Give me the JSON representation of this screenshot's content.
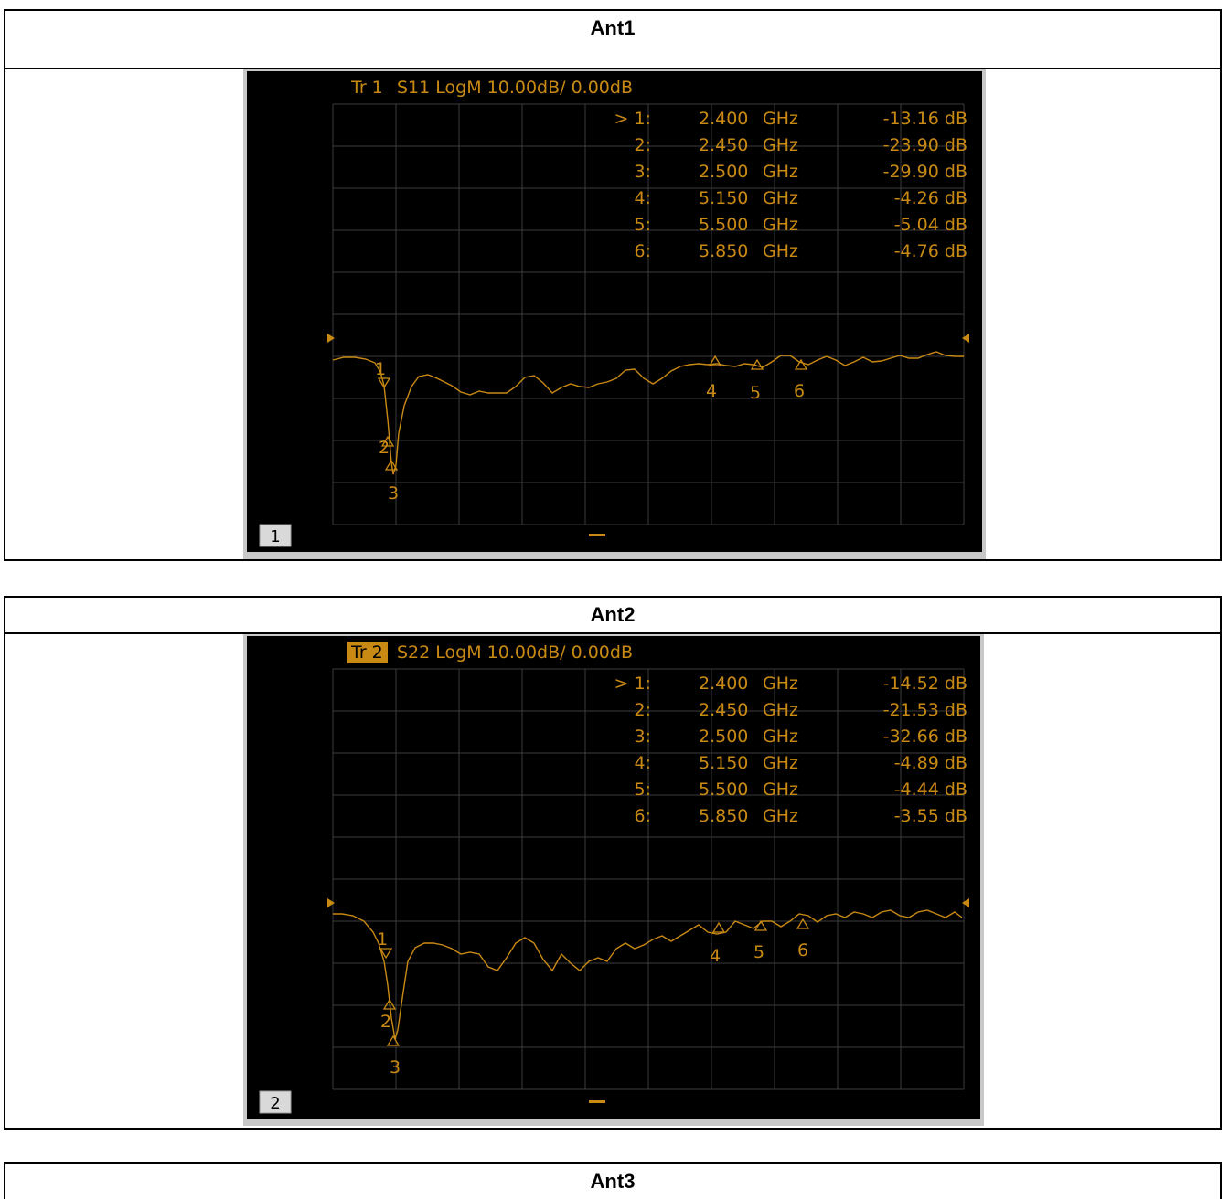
{
  "panels": [
    {
      "title": "Ant1",
      "trace_tag": "Tr 1",
      "trace_tag_highlight": false,
      "trace_info": "S11 LogM 10.00dB/  0.00dB",
      "channel": "1",
      "markers": [
        {
          "label": "> 1:",
          "freq": "2.400",
          "unit": "GHz",
          "value": "-13.16 dB"
        },
        {
          "label": "2:",
          "freq": "2.450",
          "unit": "GHz",
          "value": "-23.90 dB"
        },
        {
          "label": "3:",
          "freq": "2.500",
          "unit": "GHz",
          "value": "-29.90 dB"
        },
        {
          "label": "4:",
          "freq": "5.150",
          "unit": "GHz",
          "value": "-4.26 dB"
        },
        {
          "label": "5:",
          "freq": "5.500",
          "unit": "GHz",
          "value": "-5.04 dB"
        },
        {
          "label": "6:",
          "freq": "5.850",
          "unit": "GHz",
          "value": "-4.76 dB"
        }
      ],
      "marker_ids": [
        "1",
        "2",
        "3",
        "4",
        "5",
        "6"
      ]
    },
    {
      "title": "Ant2",
      "trace_tag": "Tr 2",
      "trace_tag_highlight": true,
      "trace_info": "S22 LogM 10.00dB/  0.00dB",
      "channel": "2",
      "markers": [
        {
          "label": "> 1:",
          "freq": "2.400",
          "unit": "GHz",
          "value": "-14.52 dB"
        },
        {
          "label": "2:",
          "freq": "2.450",
          "unit": "GHz",
          "value": "-21.53 dB"
        },
        {
          "label": "3:",
          "freq": "2.500",
          "unit": "GHz",
          "value": "-32.66 dB"
        },
        {
          "label": "4:",
          "freq": "5.150",
          "unit": "GHz",
          "value": "-4.89 dB"
        },
        {
          "label": "5:",
          "freq": "5.500",
          "unit": "GHz",
          "value": "-4.44 dB"
        },
        {
          "label": "6:",
          "freq": "5.850",
          "unit": "GHz",
          "value": "-3.55 dB"
        }
      ],
      "marker_ids": [
        "1",
        "2",
        "3",
        "4",
        "5",
        "6"
      ]
    },
    {
      "title": "Ant3"
    }
  ],
  "colors": {
    "trace": "#c98a14",
    "grid": "#3c3c3c",
    "screen": "#000000",
    "frame": "#c8c8c8"
  },
  "chart_data": [
    {
      "type": "line",
      "title": "Ant1",
      "series": [
        {
          "name": "S11",
          "marker_points": [
            {
              "x": 2.4,
              "y": -13.16
            },
            {
              "x": 2.45,
              "y": -23.9
            },
            {
              "x": 2.5,
              "y": -29.9
            },
            {
              "x": 5.15,
              "y": -4.26
            },
            {
              "x": 5.5,
              "y": -5.04
            },
            {
              "x": 5.85,
              "y": -4.76
            }
          ]
        }
      ],
      "xunit": "GHz",
      "yunit": "dB",
      "scale_per_div": 10,
      "reference": 0,
      "grid": true
    },
    {
      "type": "line",
      "title": "Ant2",
      "series": [
        {
          "name": "S22",
          "marker_points": [
            {
              "x": 2.4,
              "y": -14.52
            },
            {
              "x": 2.45,
              "y": -21.53
            },
            {
              "x": 2.5,
              "y": -32.66
            },
            {
              "x": 5.15,
              "y": -4.89
            },
            {
              "x": 5.5,
              "y": -4.44
            },
            {
              "x": 5.85,
              "y": -3.55
            }
          ]
        }
      ],
      "xunit": "GHz",
      "yunit": "dB",
      "scale_per_div": 10,
      "reference": 0,
      "grid": true
    }
  ]
}
